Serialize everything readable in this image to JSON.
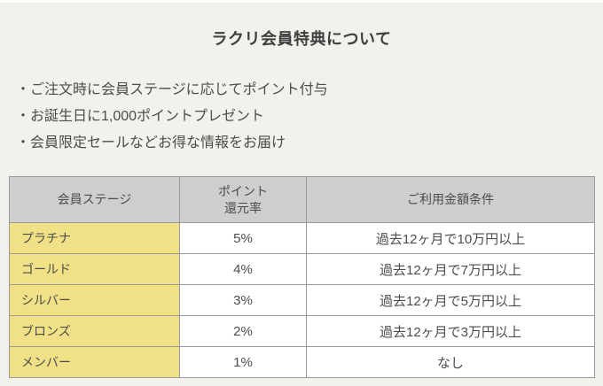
{
  "page": {
    "background": "#f3f1ec",
    "title": "ラクリ会員特典について",
    "bullets": [
      "・ご注文時に会員ステージに応じてポイント付与",
      "・お誕生日に1,000ポイントプレゼント",
      "・会員限定セールなどお得な情報をお届け"
    ]
  },
  "table": {
    "headers": {
      "stage": "会員ステージ",
      "rate": "ポイント\n還元率",
      "condition": "ご利用金額条件"
    },
    "rows": [
      {
        "stage": "プラチナ",
        "rate": "5%",
        "condition": "過去12ヶ月で10万円以上"
      },
      {
        "stage": "ゴールド",
        "rate": "4%",
        "condition": "過去12ヶ月で7万円以上"
      },
      {
        "stage": "シルバー",
        "rate": "3%",
        "condition": "過去12ヶ月で5万円以上"
      },
      {
        "stage": "ブロンズ",
        "rate": "2%",
        "condition": "過去12ヶ月で3万円以上"
      },
      {
        "stage": "メンバー",
        "rate": "1%",
        "condition": "なし"
      }
    ],
    "colors": {
      "header_bg": "#cecece",
      "stage_bg": "#f0e187",
      "border": "#999999",
      "text": "#4c4c4c"
    }
  }
}
